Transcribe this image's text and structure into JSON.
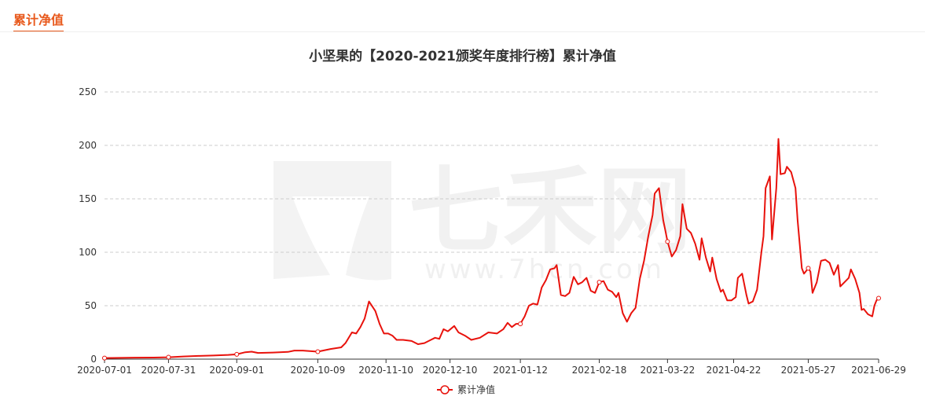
{
  "header": {
    "tab_label": "累计净值"
  },
  "colors": {
    "accent": "#e8591c",
    "series": "#e8120c",
    "grid": "#cccccc",
    "axis": "#333333"
  },
  "watermark": {
    "brand": "七禾网",
    "url": "www.7hcn.com"
  },
  "chart_data": {
    "type": "line",
    "title": "小坚果的【2020-2021颁奖年度排行榜】累计净值",
    "xlabel": "",
    "ylabel": "",
    "ylim": [
      0,
      250
    ],
    "y_ticks": [
      "0",
      "50",
      "100",
      "150",
      "200",
      "250"
    ],
    "x_tick_labels": [
      "2020-07-01",
      "2020-07-31",
      "2020-09-01",
      "2020-10-09",
      "2020-11-10",
      "2020-12-10",
      "2021-01-12",
      "2021-02-18",
      "2021-03-22",
      "2021-04-22",
      "2021-05-27",
      "2021-06-29"
    ],
    "grid": "horizontal dashed",
    "legend": "bottom-center",
    "series": [
      {
        "name": "累计净值",
        "points": [
          [
            "2020-07-01",
            1.0
          ],
          [
            "2020-07-08",
            1.2
          ],
          [
            "2020-07-15",
            1.4
          ],
          [
            "2020-07-24",
            1.5
          ],
          [
            "2020-07-31",
            1.8
          ],
          [
            "2020-08-07",
            2.5
          ],
          [
            "2020-08-14",
            3.0
          ],
          [
            "2020-08-21",
            3.4
          ],
          [
            "2020-08-28",
            4.0
          ],
          [
            "2020-09-01",
            4.5
          ],
          [
            "2020-09-05",
            6.5
          ],
          [
            "2020-09-08",
            7.0
          ],
          [
            "2020-09-11",
            5.8
          ],
          [
            "2020-09-18",
            6.2
          ],
          [
            "2020-09-25",
            6.8
          ],
          [
            "2020-09-28",
            8.0
          ],
          [
            "2020-10-02",
            8.0
          ],
          [
            "2020-10-09",
            7.0
          ],
          [
            "2020-10-15",
            9.5
          ],
          [
            "2020-10-20",
            11.0
          ],
          [
            "2020-10-22",
            15.0
          ],
          [
            "2020-10-25",
            25.0
          ],
          [
            "2020-10-27",
            24.0
          ],
          [
            "2020-10-29",
            30.0
          ],
          [
            "2020-10-31",
            38.0
          ],
          [
            "2020-11-02",
            54.0
          ],
          [
            "2020-11-04",
            48.0
          ],
          [
            "2020-11-05",
            45.0
          ],
          [
            "2020-11-07",
            33.0
          ],
          [
            "2020-11-09",
            24.0
          ],
          [
            "2020-11-11",
            24.0
          ],
          [
            "2020-11-13",
            22.0
          ],
          [
            "2020-11-15",
            18.0
          ],
          [
            "2020-11-18",
            18.0
          ],
          [
            "2020-11-22",
            17.0
          ],
          [
            "2020-11-25",
            14.0
          ],
          [
            "2020-11-28",
            15.0
          ],
          [
            "2020-12-01",
            18.0
          ],
          [
            "2020-12-03",
            20.0
          ],
          [
            "2020-12-05",
            19.0
          ],
          [
            "2020-12-07",
            28.0
          ],
          [
            "2020-12-09",
            26.0
          ],
          [
            "2020-12-12",
            31.0
          ],
          [
            "2020-12-14",
            25.0
          ],
          [
            "2020-12-17",
            22.0
          ],
          [
            "2020-12-20",
            18.0
          ],
          [
            "2020-12-24",
            20.0
          ],
          [
            "2020-12-28",
            25.0
          ],
          [
            "2021-01-01",
            24.0
          ],
          [
            "2021-01-04",
            28.0
          ],
          [
            "2021-01-06",
            34.0
          ],
          [
            "2021-01-08",
            30.0
          ],
          [
            "2021-01-10",
            33.0
          ],
          [
            "2021-01-12",
            33.0
          ],
          [
            "2021-01-14",
            40.0
          ],
          [
            "2021-01-16",
            50.0
          ],
          [
            "2021-01-18",
            52.0
          ],
          [
            "2021-01-20",
            51.0
          ],
          [
            "2021-01-22",
            67.0
          ],
          [
            "2021-01-24",
            74.0
          ],
          [
            "2021-01-26",
            84.0
          ],
          [
            "2021-01-28",
            85.0
          ],
          [
            "2021-01-29",
            88.0
          ],
          [
            "2021-01-31",
            60.0
          ],
          [
            "2021-02-02",
            59.0
          ],
          [
            "2021-02-04",
            62.0
          ],
          [
            "2021-02-06",
            77.0
          ],
          [
            "2021-02-08",
            70.0
          ],
          [
            "2021-02-10",
            72.0
          ],
          [
            "2021-02-12",
            76.0
          ],
          [
            "2021-02-14",
            64.0
          ],
          [
            "2021-02-16",
            62.0
          ],
          [
            "2021-02-18",
            72.0
          ],
          [
            "2021-02-20",
            73.0
          ],
          [
            "2021-02-22",
            65.0
          ],
          [
            "2021-02-24",
            63.0
          ],
          [
            "2021-02-26",
            58.0
          ],
          [
            "2021-02-27",
            62.0
          ],
          [
            "2021-03-01",
            43.0
          ],
          [
            "2021-03-03",
            35.0
          ],
          [
            "2021-03-05",
            43.0
          ],
          [
            "2021-03-07",
            48.0
          ],
          [
            "2021-03-09",
            75.0
          ],
          [
            "2021-03-11",
            92.0
          ],
          [
            "2021-03-13",
            115.0
          ],
          [
            "2021-03-15",
            135.0
          ],
          [
            "2021-03-16",
            155.0
          ],
          [
            "2021-03-18",
            160.0
          ],
          [
            "2021-03-20",
            130.0
          ],
          [
            "2021-03-21",
            120.0
          ],
          [
            "2021-03-22",
            110.0
          ],
          [
            "2021-03-24",
            96.0
          ],
          [
            "2021-03-26",
            102.0
          ],
          [
            "2021-03-28",
            115.0
          ],
          [
            "2021-03-29",
            145.0
          ],
          [
            "2021-03-31",
            122.0
          ],
          [
            "2021-04-02",
            118.0
          ],
          [
            "2021-04-04",
            108.0
          ],
          [
            "2021-04-06",
            93.0
          ],
          [
            "2021-04-07",
            113.0
          ],
          [
            "2021-04-09",
            95.0
          ],
          [
            "2021-04-11",
            82.0
          ],
          [
            "2021-04-12",
            95.0
          ],
          [
            "2021-04-14",
            75.0
          ],
          [
            "2021-04-16",
            63.0
          ],
          [
            "2021-04-17",
            65.0
          ],
          [
            "2021-04-19",
            55.0
          ],
          [
            "2021-04-21",
            55.0
          ],
          [
            "2021-04-23",
            58.0
          ],
          [
            "2021-04-24",
            76.0
          ],
          [
            "2021-04-26",
            80.0
          ],
          [
            "2021-04-28",
            60.0
          ],
          [
            "2021-04-29",
            52.0
          ],
          [
            "2021-05-01",
            54.0
          ],
          [
            "2021-05-03",
            65.0
          ],
          [
            "2021-05-05",
            100.0
          ],
          [
            "2021-05-06",
            115.0
          ],
          [
            "2021-05-07",
            160.0
          ],
          [
            "2021-05-09",
            171.0
          ],
          [
            "2021-05-10",
            112.0
          ],
          [
            "2021-05-12",
            160.0
          ],
          [
            "2021-05-13",
            206.0
          ],
          [
            "2021-05-14",
            173.0
          ],
          [
            "2021-05-16",
            174.0
          ],
          [
            "2021-05-17",
            180.0
          ],
          [
            "2021-05-19",
            175.0
          ],
          [
            "2021-05-21",
            160.0
          ],
          [
            "2021-05-22",
            130.0
          ],
          [
            "2021-05-24",
            85.0
          ],
          [
            "2021-05-25",
            80.0
          ],
          [
            "2021-05-27",
            85.0
          ],
          [
            "2021-05-28",
            82.0
          ],
          [
            "2021-05-29",
            62.0
          ],
          [
            "2021-05-31",
            72.0
          ],
          [
            "2021-06-02",
            92.0
          ],
          [
            "2021-06-04",
            93.0
          ],
          [
            "2021-06-06",
            90.0
          ],
          [
            "2021-06-08",
            79.0
          ],
          [
            "2021-06-10",
            88.0
          ],
          [
            "2021-06-11",
            68.0
          ],
          [
            "2021-06-13",
            72.0
          ],
          [
            "2021-06-15",
            76.0
          ],
          [
            "2021-06-16",
            84.0
          ],
          [
            "2021-06-18",
            75.0
          ],
          [
            "2021-06-20",
            62.0
          ],
          [
            "2021-06-21",
            46.0
          ],
          [
            "2021-06-22",
            47.0
          ],
          [
            "2021-06-24",
            42.0
          ],
          [
            "2021-06-26",
            40.0
          ],
          [
            "2021-06-27",
            50.0
          ],
          [
            "2021-06-28",
            55.0
          ],
          [
            "2021-06-29",
            57.0
          ]
        ]
      }
    ]
  }
}
